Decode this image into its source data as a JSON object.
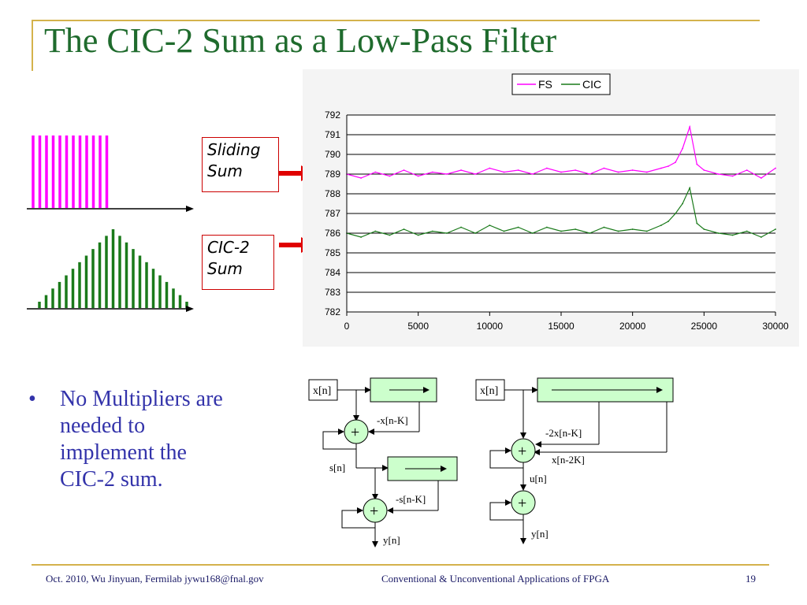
{
  "slide": {
    "title": "The CIC-2 Sum as a Low-Pass Filter",
    "labels": {
      "sliding_sum": "Sliding\nSum",
      "cic2_sum": "CIC-2\nSum"
    },
    "bullet": {
      "symbol": "•",
      "text": "No Multipliers are needed to implement the CIC-2 sum."
    },
    "footer": {
      "left": "Oct. 2010, Wu Jinyuan, Fermilab jywu168@fnal.gov",
      "center": "Conventional & Unconventional Applications of FPGA",
      "page": "19"
    },
    "colors": {
      "title": "#1f6b2d",
      "magenta": "#ff00ff",
      "green": "#1a7a1a",
      "arrow_red": "#e00000",
      "frame_gold": "#d4b24c",
      "adder_fill": "#ccffcc",
      "delay_fill": "#ccffcc"
    }
  },
  "impulse_plots": {
    "sliding_bar_count": 12,
    "cic2_bar_count": 23
  },
  "chart_data": {
    "type": "line",
    "legend": [
      "FS",
      "CIC"
    ],
    "legend_position": "top-right",
    "xlim": [
      0,
      30000
    ],
    "ylim": [
      782,
      792
    ],
    "x_ticks": [
      "0",
      "5000",
      "10000",
      "15000",
      "20000",
      "25000",
      "30000"
    ],
    "y_ticks": [
      "782",
      "783",
      "784",
      "785",
      "786",
      "787",
      "788",
      "789",
      "790",
      "791",
      "792"
    ],
    "grid": true,
    "series": [
      {
        "name": "FS",
        "color": "#ff00ff",
        "x": [
          0,
          1000,
          2000,
          3000,
          4000,
          5000,
          6000,
          7000,
          8000,
          9000,
          10000,
          11000,
          12000,
          13000,
          14000,
          15000,
          16000,
          17000,
          18000,
          19000,
          20000,
          21000,
          22000,
          22500,
          23000,
          23500,
          24000,
          24500,
          25000,
          26000,
          27000,
          28000,
          29000,
          30000
        ],
        "y": [
          789.0,
          788.8,
          789.1,
          788.9,
          789.2,
          788.9,
          789.1,
          789.0,
          789.2,
          789.0,
          789.3,
          789.1,
          789.2,
          789.0,
          789.3,
          789.1,
          789.2,
          789.0,
          789.3,
          789.1,
          789.2,
          789.1,
          789.3,
          789.4,
          789.6,
          790.3,
          791.4,
          789.5,
          789.2,
          789.0,
          788.9,
          789.2,
          788.8,
          789.3
        ]
      },
      {
        "name": "CIC",
        "color": "#1a7a1a",
        "x": [
          0,
          1000,
          2000,
          3000,
          4000,
          5000,
          6000,
          7000,
          8000,
          9000,
          10000,
          11000,
          12000,
          13000,
          14000,
          15000,
          16000,
          17000,
          18000,
          19000,
          20000,
          21000,
          22000,
          22500,
          23000,
          23500,
          24000,
          24500,
          25000,
          26000,
          27000,
          28000,
          29000,
          30000
        ],
        "y": [
          786.0,
          785.8,
          786.1,
          785.9,
          786.2,
          785.9,
          786.1,
          786.0,
          786.3,
          786.0,
          786.4,
          786.1,
          786.3,
          786.0,
          786.3,
          786.1,
          786.2,
          786.0,
          786.3,
          786.1,
          786.2,
          786.1,
          786.4,
          786.6,
          787.0,
          787.5,
          788.3,
          786.5,
          786.2,
          786.0,
          785.9,
          786.1,
          785.8,
          786.2
        ]
      }
    ]
  },
  "diagrams": {
    "left": {
      "input": "x[n]",
      "delay1_tap": "-x[n-K]",
      "s_label": "s[n]",
      "delay2_tap": "-s[n-K]",
      "output": "y[n]",
      "adder": "+"
    },
    "right": {
      "input": "x[n]",
      "tap1": "-2x[n-K]",
      "tap2": "x[n-2K]",
      "u_label": "u[n]",
      "output": "y[n]",
      "adder": "+"
    }
  }
}
